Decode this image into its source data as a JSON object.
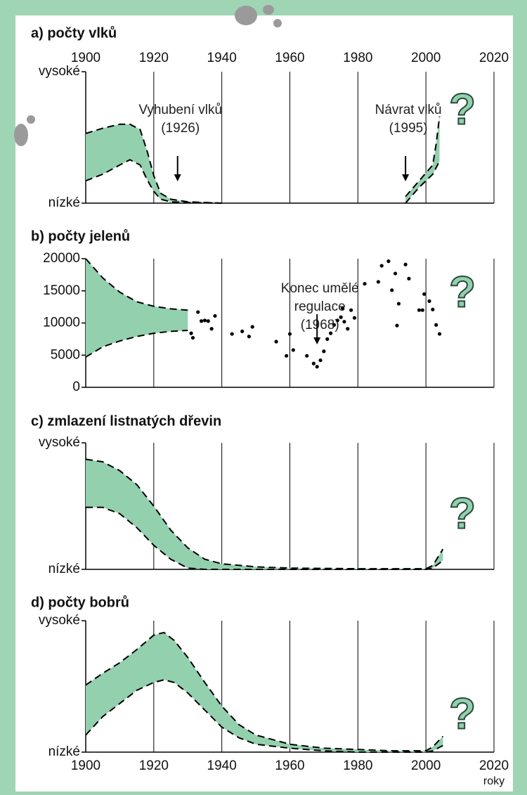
{
  "chart_data": [
    {
      "type": "band",
      "title": "a) počty vlků",
      "color": "#93d0ae",
      "xlim": [
        1900,
        2020
      ],
      "xticks": [
        1900,
        1920,
        1940,
        1960,
        1980,
        2000,
        2020
      ],
      "xtick_labels": "top",
      "ylim": [
        0,
        100
      ],
      "yticks": [
        {
          "value": 0,
          "label": "nízké"
        },
        {
          "value": 100,
          "label": "vysoké"
        }
      ],
      "bands": [
        {
          "x": [
            1900,
            1905,
            1910,
            1913,
            1916,
            1918,
            1920,
            1922,
            1925,
            1930,
            1940
          ],
          "upper": [
            53,
            57,
            60,
            60,
            56,
            40,
            21,
            7.5,
            3,
            1,
            0
          ],
          "lower": [
            17,
            22,
            29,
            33,
            29,
            18,
            9,
            3,
            1,
            0.5,
            0
          ]
        },
        {
          "x": [
            1994,
            1998,
            2002,
            2003,
            2004
          ],
          "upper": [
            5,
            17,
            29,
            45,
            66
          ],
          "lower": [
            0,
            12,
            22,
            27,
            32
          ]
        }
      ],
      "annotations": [
        {
          "lines": [
            "Vyhubení vlků",
            "(1926)"
          ],
          "x": 1927
        },
        {
          "lines": [
            "Návrat vlků",
            "(1995)"
          ],
          "x": 1994
        }
      ],
      "question": "?"
    },
    {
      "type": "band",
      "title": "b) počty jelenů",
      "color": "#93d0ae",
      "xlim": [
        1900,
        2020
      ],
      "xticks": [
        1900,
        1920,
        1940,
        1960,
        1980,
        2000,
        2020
      ],
      "xtick_labels": "none",
      "ylim": [
        0,
        20000
      ],
      "yticks": [
        0,
        5000,
        10000,
        15000,
        20000
      ],
      "bands": [
        {
          "x": [
            1900,
            1905,
            1910,
            1915,
            1920,
            1925,
            1930
          ],
          "upper": [
            20000,
            17000,
            14800,
            13300,
            12600,
            12200,
            12000
          ],
          "lower": [
            4700,
            6300,
            7200,
            7900,
            8400,
            8700,
            8850
          ]
        }
      ],
      "points": {
        "x": [
          1931,
          1931.5,
          1933,
          1934,
          1935,
          1936,
          1937,
          1938,
          1943,
          1946,
          1948,
          1949,
          1956,
          1959,
          1960,
          1961,
          1965,
          1967,
          1968,
          1969,
          1970,
          1971,
          1972,
          1973,
          1974,
          1975,
          1975.5,
          1976,
          1977,
          1978,
          1979,
          1982,
          1986,
          1987,
          1989,
          1990,
          1991,
          1991.5,
          1992,
          1994,
          1995,
          1998,
          1999,
          1999.5,
          2001,
          2002,
          2003,
          2004
        ],
        "values": [
          8400,
          7700,
          11700,
          10300,
          10400,
          10300,
          9100,
          11100,
          8300,
          8700,
          7900,
          9400,
          7100,
          4900,
          8300,
          5800,
          4900,
          3700,
          3200,
          4200,
          5600,
          7500,
          8400,
          9700,
          10400,
          10900,
          12300,
          10200,
          9100,
          12000,
          10800,
          16100,
          16400,
          18900,
          19600,
          15100,
          17700,
          9600,
          13000,
          19100,
          16900,
          12000,
          12000,
          14500,
          13400,
          12100,
          9700,
          8300
        ]
      },
      "annotations": [
        {
          "lines": [
            "Konec umělé",
            "regulace",
            "(1968)"
          ],
          "x": 1968
        }
      ],
      "question": "?"
    },
    {
      "type": "band",
      "title": "c) zmlazení listnatých dřevin",
      "color": "#93d0ae",
      "xlim": [
        1900,
        2020
      ],
      "xticks": [
        1900,
        1920,
        1940,
        1960,
        1980,
        2000,
        2020
      ],
      "xtick_labels": "none",
      "ylim": [
        0,
        100
      ],
      "yticks": [
        {
          "value": 0,
          "label": "nízké"
        },
        {
          "value": 100,
          "label": "vysoké"
        }
      ],
      "bands": [
        {
          "x": [
            1900,
            1905,
            1910,
            1915,
            1920,
            1925,
            1930,
            1935,
            1940,
            1950,
            1960,
            1980,
            2000,
            2002,
            2005
          ],
          "upper": [
            87,
            85,
            78,
            67,
            50,
            31,
            17,
            8,
            4.4,
            2,
            1,
            0.5,
            0.5,
            3,
            16
          ],
          "lower": [
            49,
            49,
            44,
            33,
            19,
            8,
            1,
            0,
            0,
            0,
            0,
            0,
            0,
            1,
            7
          ]
        }
      ],
      "question": "?"
    },
    {
      "type": "band",
      "title": "d) počty bobrů",
      "color": "#93d0ae",
      "xlim": [
        1900,
        2020
      ],
      "xticks": [
        1900,
        1920,
        1940,
        1960,
        1980,
        2000,
        2020
      ],
      "xtick_labels": "bottom",
      "xlabel": "roky",
      "ylim": [
        0,
        100
      ],
      "yticks": [
        {
          "value": 0,
          "label": "nízké"
        },
        {
          "value": 100,
          "label": "vysoké"
        }
      ],
      "bands": [
        {
          "x": [
            1900,
            1905,
            1910,
            1915,
            1920,
            1923,
            1926,
            1930,
            1935,
            1940,
            1945,
            1950,
            1960,
            1970,
            1980,
            1990,
            2000,
            2002,
            2005
          ],
          "upper": [
            51,
            60,
            68,
            78,
            89,
            91,
            85,
            72,
            53,
            35,
            21,
            13,
            6,
            3,
            2,
            1,
            1,
            4,
            12
          ],
          "lower": [
            13,
            27,
            37,
            47,
            53,
            55,
            53,
            45,
            32,
            19,
            11,
            6,
            3,
            1,
            0,
            0,
            0,
            1,
            5
          ]
        }
      ],
      "question": "?"
    }
  ]
}
